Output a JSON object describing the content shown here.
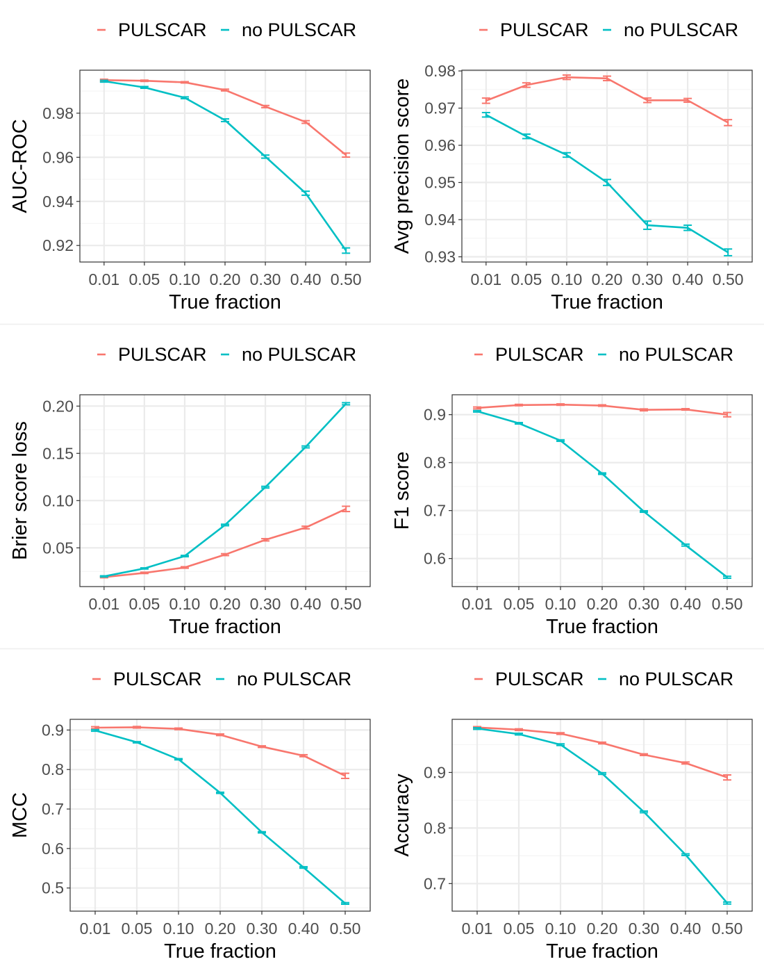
{
  "colors": {
    "pulscar": "#F8766D",
    "no_pulscar": "#00BFC4",
    "grid_major": "#EBEBEB",
    "grid_minor": "#F5F5F5",
    "panel_border": "#333333",
    "separator": "#EEEEEE"
  },
  "chart_data": [
    {
      "type": "line",
      "id": "auc-roc",
      "xlabel": "True fraction",
      "ylabel": "AUC-ROC",
      "categories": [
        "0.01",
        "0.05",
        "0.10",
        "0.20",
        "0.30",
        "0.40",
        "0.50"
      ],
      "ylim": [
        0.9125,
        0.9995
      ],
      "yticks": [
        0.92,
        0.94,
        0.96,
        0.98
      ],
      "ytick_labels": [
        "0.92",
        "0.94",
        "0.96",
        "0.98"
      ],
      "series": [
        {
          "name": "PULSCAR",
          "values": [
            0.995,
            0.9947,
            0.994,
            0.9905,
            0.983,
            0.976,
            0.961
          ],
          "errors": [
            0.0004,
            0.0003,
            0.0003,
            0.0004,
            0.0005,
            0.0006,
            0.0009
          ]
        },
        {
          "name": "no PULSCAR",
          "values": [
            0.9945,
            0.9917,
            0.987,
            0.9768,
            0.9603,
            0.9437,
            0.9177
          ],
          "errors": [
            0.0004,
            0.0004,
            0.0004,
            0.0006,
            0.0007,
            0.0009,
            0.0012
          ]
        }
      ]
    },
    {
      "type": "line",
      "id": "avg-precision",
      "xlabel": "True fraction",
      "ylabel": "Avg precision score",
      "categories": [
        "0.01",
        "0.05",
        "0.10",
        "0.20",
        "0.30",
        "0.40",
        "0.50"
      ],
      "ylim": [
        0.9286,
        0.9802
      ],
      "yticks": [
        0.93,
        0.94,
        0.95,
        0.96,
        0.97,
        0.98
      ],
      "ytick_labels": [
        "0.93",
        "0.94",
        "0.95",
        "0.96",
        "0.97",
        "0.98"
      ],
      "series": [
        {
          "name": "PULSCAR",
          "values": [
            0.972,
            0.9762,
            0.9783,
            0.978,
            0.9721,
            0.9721,
            0.9661
          ],
          "errors": [
            0.0007,
            0.0006,
            0.0006,
            0.0006,
            0.0006,
            0.0005,
            0.0008
          ]
        },
        {
          "name": "no PULSCAR",
          "values": [
            0.9682,
            0.9624,
            0.9574,
            0.95,
            0.9385,
            0.9378,
            0.9312
          ],
          "errors": [
            0.0006,
            0.0006,
            0.0006,
            0.0008,
            0.0011,
            0.0007,
            0.0009
          ]
        }
      ]
    },
    {
      "type": "line",
      "id": "brier",
      "xlabel": "True fraction",
      "ylabel": "Brier score loss",
      "categories": [
        "0.01",
        "0.05",
        "0.10",
        "0.20",
        "0.30",
        "0.40",
        "0.50"
      ],
      "ylim": [
        0.009,
        0.212
      ],
      "yticks": [
        0.05,
        0.1,
        0.15,
        0.2
      ],
      "ytick_labels": [
        "0.05",
        "0.10",
        "0.15",
        "0.20"
      ],
      "series": [
        {
          "name": "PULSCAR",
          "values": [
            0.019,
            0.0235,
            0.0292,
            0.0428,
            0.0585,
            0.0715,
            0.0912
          ],
          "errors": [
            0.0007,
            0.0007,
            0.0008,
            0.001,
            0.0012,
            0.0014,
            0.0028
          ]
        },
        {
          "name": "no PULSCAR",
          "values": [
            0.0198,
            0.0282,
            0.0413,
            0.0742,
            0.1142,
            0.1568,
            0.2025
          ],
          "errors": [
            0.0006,
            0.0006,
            0.0007,
            0.0008,
            0.0009,
            0.001,
            0.0011
          ]
        }
      ]
    },
    {
      "type": "line",
      "id": "f1",
      "xlabel": "True fraction",
      "ylabel": "F1 score",
      "categories": [
        "0.01",
        "0.05",
        "0.10",
        "0.20",
        "0.30",
        "0.40",
        "0.50"
      ],
      "ylim": [
        0.5415,
        0.9415
      ],
      "yticks": [
        0.6,
        0.7,
        0.8,
        0.9
      ],
      "ytick_labels": [
        "0.6",
        "0.7",
        "0.8",
        "0.9"
      ],
      "series": [
        {
          "name": "PULSCAR",
          "values": [
            0.914,
            0.92,
            0.921,
            0.919,
            0.91,
            0.911,
            0.9
          ],
          "errors": [
            0.002,
            0.0015,
            0.0015,
            0.0015,
            0.002,
            0.0015,
            0.0045
          ]
        },
        {
          "name": "no PULSCAR",
          "values": [
            0.907,
            0.882,
            0.846,
            0.777,
            0.698,
            0.628,
            0.561
          ],
          "errors": [
            0.0015,
            0.0015,
            0.0015,
            0.0015,
            0.0015,
            0.002,
            0.002
          ]
        }
      ]
    },
    {
      "type": "line",
      "id": "mcc",
      "xlabel": "True fraction",
      "ylabel": "MCC",
      "categories": [
        "0.01",
        "0.05",
        "0.10",
        "0.20",
        "0.30",
        "0.40",
        "0.50"
      ],
      "ylim": [
        0.4414,
        0.9271
      ],
      "yticks": [
        0.5,
        0.6,
        0.7,
        0.8,
        0.9
      ],
      "ytick_labels": [
        "0.5",
        "0.6",
        "0.7",
        "0.8",
        "0.9"
      ],
      "series": [
        {
          "name": "PULSCAR",
          "values": [
            0.906,
            0.907,
            0.903,
            0.888,
            0.858,
            0.835,
            0.784
          ],
          "errors": [
            0.0025,
            0.002,
            0.002,
            0.002,
            0.002,
            0.0025,
            0.0065
          ]
        },
        {
          "name": "no PULSCAR",
          "values": [
            0.899,
            0.869,
            0.826,
            0.741,
            0.641,
            0.552,
            0.461
          ],
          "errors": [
            0.002,
            0.0015,
            0.0015,
            0.0015,
            0.0015,
            0.0018,
            0.002
          ]
        }
      ]
    },
    {
      "type": "line",
      "id": "accuracy",
      "xlabel": "True fraction",
      "ylabel": "Accuracy",
      "categories": [
        "0.01",
        "0.05",
        "0.10",
        "0.20",
        "0.30",
        "0.40",
        "0.50"
      ],
      "ylim": [
        0.6504,
        0.9956
      ],
      "yticks": [
        0.7,
        0.8,
        0.9
      ],
      "ytick_labels": [
        "0.7",
        "0.8",
        "0.9"
      ],
      "series": [
        {
          "name": "PULSCAR",
          "values": [
            0.981,
            0.977,
            0.97,
            0.953,
            0.932,
            0.917,
            0.891
          ],
          "errors": [
            0.0015,
            0.0015,
            0.0015,
            0.0015,
            0.0015,
            0.0018,
            0.0045
          ]
        },
        {
          "name": "no PULSCAR",
          "values": [
            0.979,
            0.969,
            0.95,
            0.898,
            0.829,
            0.752,
            0.665
          ],
          "errors": [
            0.0015,
            0.0015,
            0.0015,
            0.0015,
            0.0015,
            0.0015,
            0.0018
          ]
        }
      ]
    }
  ]
}
